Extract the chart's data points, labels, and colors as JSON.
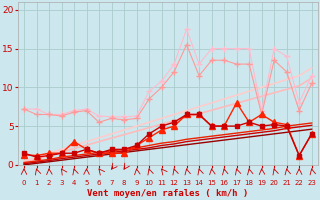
{
  "xlabel": "Vent moyen/en rafales ( km/h )",
  "xlim": [
    0,
    23
  ],
  "ylim": [
    0,
    21
  ],
  "yticks": [
    0,
    5,
    10,
    15,
    20
  ],
  "bg_color": "#cce8ee",
  "grid_color": "#aacccc",
  "series": [
    {
      "color": "#ffbbcc",
      "marker": "+",
      "lw": 0.8,
      "ms": 4,
      "zorder": 3,
      "y": [
        7.2,
        7.2,
        6.5,
        6.5,
        7.0,
        7.2,
        6.3,
        6.2,
        6.2,
        6.3,
        9.5,
        10.8,
        13.0,
        17.5,
        13.0,
        15.0,
        15.0,
        15.0,
        15.0,
        7.0,
        15.0,
        14.0,
        8.0,
        11.5
      ]
    },
    {
      "color": "#ff9999",
      "marker": "+",
      "lw": 0.8,
      "ms": 4,
      "zorder": 3,
      "y": [
        7.2,
        6.5,
        6.5,
        6.3,
        6.8,
        7.0,
        5.5,
        6.0,
        5.8,
        6.0,
        8.5,
        10.0,
        12.0,
        15.5,
        11.5,
        13.5,
        13.5,
        13.0,
        13.0,
        6.5,
        13.5,
        12.0,
        7.0,
        10.5
      ]
    },
    {
      "color": "#ffcccc",
      "marker": null,
      "lw": 1.2,
      "ms": 0,
      "zorder": 2,
      "y": [
        0.5,
        1.0,
        1.5,
        2.0,
        2.5,
        3.0,
        3.5,
        4.0,
        4.5,
        5.0,
        5.5,
        6.0,
        6.5,
        7.0,
        7.5,
        8.0,
        8.5,
        9.0,
        9.5,
        10.0,
        10.5,
        11.0,
        11.5,
        12.5
      ]
    },
    {
      "color": "#ffbbbb",
      "marker": null,
      "lw": 1.2,
      "ms": 0,
      "zorder": 2,
      "y": [
        0.3,
        0.75,
        1.2,
        1.65,
        2.1,
        2.55,
        3.0,
        3.45,
        3.9,
        4.35,
        4.8,
        5.25,
        5.7,
        6.15,
        6.6,
        7.05,
        7.5,
        7.95,
        8.4,
        8.85,
        9.3,
        9.75,
        10.2,
        11.2
      ]
    },
    {
      "color": "#ff2200",
      "marker": "^",
      "lw": 1.0,
      "ms": 4,
      "zorder": 4,
      "y": [
        1.3,
        1.2,
        1.5,
        1.5,
        3.0,
        2.0,
        1.5,
        1.5,
        1.5,
        2.5,
        3.5,
        4.5,
        5.0,
        6.5,
        6.5,
        5.0,
        5.0,
        8.0,
        5.5,
        6.5,
        5.5,
        5.2,
        1.2,
        4.0
      ]
    },
    {
      "color": "#cc0000",
      "marker": "s",
      "lw": 1.0,
      "ms": 3,
      "zorder": 4,
      "y": [
        1.5,
        1.0,
        1.2,
        1.5,
        1.5,
        2.0,
        1.5,
        2.0,
        2.0,
        2.5,
        4.0,
        5.0,
        5.5,
        6.5,
        6.5,
        5.0,
        5.0,
        5.0,
        5.5,
        5.0,
        5.2,
        5.0,
        1.2,
        4.0
      ]
    },
    {
      "color": "#ee2200",
      "marker": null,
      "lw": 1.0,
      "ms": 0,
      "zorder": 2,
      "y": [
        0.3,
        0.5,
        0.7,
        1.0,
        1.2,
        1.4,
        1.6,
        1.8,
        2.0,
        2.2,
        2.5,
        2.8,
        3.0,
        3.3,
        3.5,
        3.7,
        3.9,
        4.1,
        4.3,
        4.5,
        4.7,
        5.0,
        5.2,
        5.4
      ]
    },
    {
      "color": "#cc0000",
      "marker": null,
      "lw": 1.0,
      "ms": 0,
      "zorder": 2,
      "y": [
        0.15,
        0.35,
        0.55,
        0.8,
        1.0,
        1.2,
        1.4,
        1.6,
        1.8,
        2.0,
        2.2,
        2.5,
        2.7,
        3.0,
        3.2,
        3.4,
        3.6,
        3.8,
        4.0,
        4.2,
        4.4,
        4.7,
        4.9,
        5.1
      ]
    },
    {
      "color": "#990000",
      "marker": null,
      "lw": 1.0,
      "ms": 0,
      "zorder": 2,
      "y": [
        0.0,
        0.2,
        0.4,
        0.6,
        0.8,
        1.0,
        1.2,
        1.4,
        1.6,
        1.8,
        2.0,
        2.2,
        2.4,
        2.6,
        2.8,
        3.0,
        3.2,
        3.4,
        3.6,
        3.8,
        4.0,
        4.2,
        4.4,
        4.6
      ]
    }
  ],
  "wind_angles": [
    180,
    200,
    185,
    220,
    200,
    180,
    225,
    315,
    320,
    190,
    200,
    225,
    200,
    195,
    200,
    190,
    195,
    200,
    195,
    185,
    200,
    195,
    180,
    195
  ]
}
